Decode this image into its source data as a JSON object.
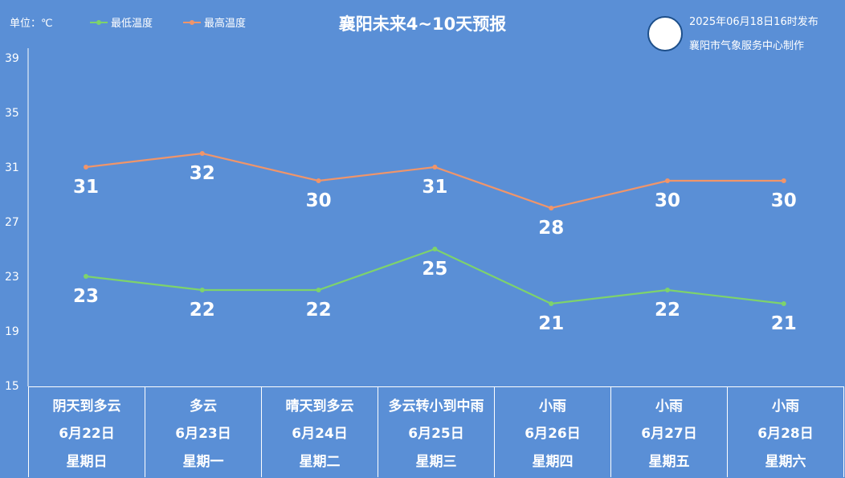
{
  "header": {
    "unit_label": "单位：℃",
    "title": "襄阳未来4~10天预报",
    "publish_time": "2025年06月18日16时发布",
    "producer": "襄阳市气象服务中心制作",
    "logo_icon": "meteorological-center-logo"
  },
  "colors": {
    "background": "#5a8fd6",
    "low_line": "#7ed36b",
    "high_line": "#f0956a"
  },
  "chart_data": {
    "type": "line",
    "title": "襄阳未来4~10天预报",
    "ylabel": "单位：℃",
    "ylim": [
      15,
      39
    ],
    "yticks": [
      15,
      19,
      23,
      27,
      31,
      35,
      39
    ],
    "grid": false,
    "legend_placement": "top-left",
    "categories": [
      "6月22日",
      "6月23日",
      "6月24日",
      "6月25日",
      "6月26日",
      "6月27日",
      "6月28日"
    ],
    "series": [
      {
        "name": "最低温度",
        "values": [
          23,
          22,
          22,
          25,
          21,
          22,
          21
        ]
      },
      {
        "name": "最高温度",
        "values": [
          31,
          32,
          30,
          31,
          28,
          30,
          30
        ]
      }
    ]
  },
  "days": [
    {
      "weather": "阴天到多云",
      "date": "6月22日",
      "weekday": "星期日"
    },
    {
      "weather": "多云",
      "date": "6月23日",
      "weekday": "星期一"
    },
    {
      "weather": "晴天到多云",
      "date": "6月24日",
      "weekday": "星期二"
    },
    {
      "weather": "多云转小到中雨",
      "date": "6月25日",
      "weekday": "星期三"
    },
    {
      "weather": "小雨",
      "date": "6月26日",
      "weekday": "星期四"
    },
    {
      "weather": "小雨",
      "date": "6月27日",
      "weekday": "星期五"
    },
    {
      "weather": "小雨",
      "date": "6月28日",
      "weekday": "星期六"
    }
  ]
}
